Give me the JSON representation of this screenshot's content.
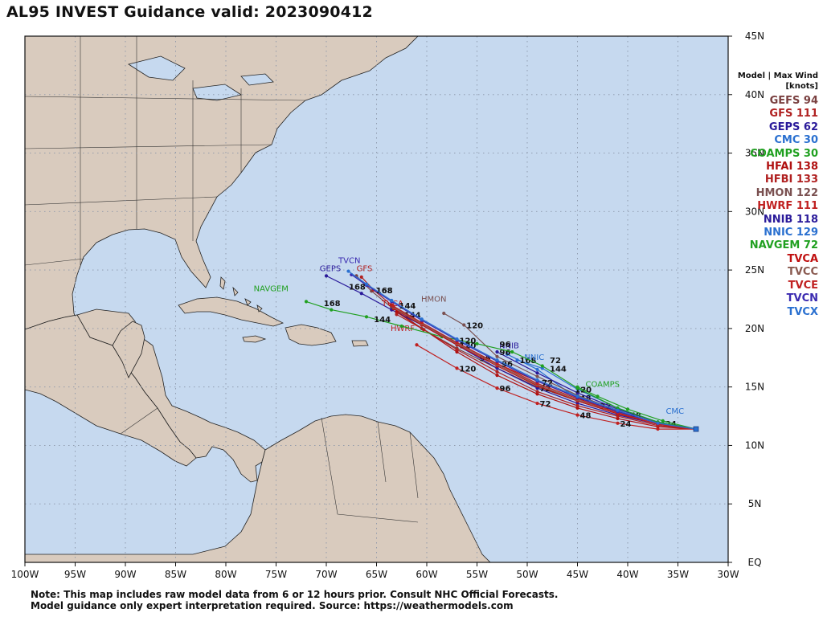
{
  "title": "AL95 INVEST Guidance valid: 2023090412",
  "legend": {
    "header_line1": "Model | Max Wind",
    "header_line2": "[knots]",
    "entries": [
      {
        "model": "GEFS",
        "wind": "94",
        "color": "#7a4040"
      },
      {
        "model": "GFS",
        "wind": "111",
        "color": "#b02020"
      },
      {
        "model": "GEPS",
        "wind": "62",
        "color": "#2a1a9a"
      },
      {
        "model": "CMC",
        "wind": "30",
        "color": "#2a70d0"
      },
      {
        "model": "COAMPS",
        "wind": "30",
        "color": "#20a020"
      },
      {
        "model": "HFAI",
        "wind": "138",
        "color": "#b01010"
      },
      {
        "model": "HFBI",
        "wind": "133",
        "color": "#b02020"
      },
      {
        "model": "HMON",
        "wind": "122",
        "color": "#7a5050"
      },
      {
        "model": "HWRF",
        "wind": "111",
        "color": "#c02020"
      },
      {
        "model": "NNIB",
        "wind": "118",
        "color": "#2a1a9a"
      },
      {
        "model": "NNIC",
        "wind": "129",
        "color": "#2a70d0"
      },
      {
        "model": "NAVGEM",
        "wind": "72",
        "color": "#20a020"
      },
      {
        "model": "TVCA",
        "wind": "",
        "color": "#c01010"
      },
      {
        "model": "TVCC",
        "wind": "",
        "color": "#8a5a50"
      },
      {
        "model": "TVCE",
        "wind": "",
        "color": "#c02020"
      },
      {
        "model": "TVCN",
        "wind": "",
        "color": "#3a2ab0"
      },
      {
        "model": "TVCX",
        "wind": "",
        "color": "#2a70d0"
      }
    ]
  },
  "note": {
    "line1": "Note: This map includes raw model data from 6 or 12 hours prior. Consult NHC Official Forecasts.",
    "line2": "Model guidance only expert interpretation required. Source: https://weathermodels.com"
  },
  "map": {
    "lon_range": [
      -100,
      -30
    ],
    "lat_range": [
      0,
      45
    ],
    "lon_ticks": [
      "100W",
      "95W",
      "90W",
      "85W",
      "80W",
      "75W",
      "70W",
      "65W",
      "60W",
      "55W",
      "50W",
      "45W",
      "40W",
      "35W",
      "30W"
    ],
    "lat_ticks": [
      "EQ",
      "5N",
      "10N",
      "15N",
      "20N",
      "25N",
      "30N",
      "35N",
      "40N",
      "45N"
    ],
    "ocean_color": "#c6d9ef",
    "land_color": "#d9cbbe"
  },
  "tracks": [
    {
      "model": "GEFS",
      "color": "#7a4040",
      "label": "",
      "points": [
        [
          -33.2,
          11.4
        ],
        [
          -37,
          11.8
        ],
        [
          -41,
          12.7
        ],
        [
          -45,
          13.8
        ],
        [
          -49,
          15.0
        ],
        [
          -53,
          16.6
        ],
        [
          -57,
          18.3
        ],
        [
          -60.5,
          20.0
        ],
        [
          -63.5,
          21.8
        ],
        [
          -65.5,
          23.2
        ],
        [
          -67,
          24.5
        ]
      ],
      "ticks": []
    },
    {
      "model": "GFS",
      "color": "#b02020",
      "label": "GFS",
      "label_pos": [
        -66.2,
        24.9
      ],
      "points": [
        [
          -33.2,
          11.4
        ],
        [
          -37,
          11.9
        ],
        [
          -41,
          12.9
        ],
        [
          -45,
          14.1
        ],
        [
          -49,
          15.5
        ],
        [
          -53,
          17.0
        ],
        [
          -57,
          18.8
        ],
        [
          -60.5,
          20.4
        ],
        [
          -63.5,
          22.0
        ],
        [
          -65.3,
          23.3
        ],
        [
          -66.5,
          24.4
        ]
      ],
      "ticks": [
        [
          -45,
          14.1,
          "48"
        ],
        [
          -55,
          17.5,
          "96"
        ],
        [
          -62.5,
          21.2,
          "144"
        ],
        [
          -65.3,
          23.3,
          "168"
        ]
      ]
    },
    {
      "model": "GEPS",
      "color": "#2a1a9a",
      "label": "GEPS",
      "label_pos": [
        -69.6,
        24.9
      ],
      "points": [
        [
          -33.2,
          11.4
        ],
        [
          -37,
          11.8
        ],
        [
          -41,
          12.6
        ],
        [
          -45,
          13.6
        ],
        [
          -49,
          14.9
        ],
        [
          -53,
          16.6
        ],
        [
          -57,
          18.6
        ],
        [
          -60.5,
          20.3
        ],
        [
          -63.5,
          21.6
        ],
        [
          -66.5,
          23.0
        ],
        [
          -70,
          24.5
        ]
      ],
      "ticks": [
        [
          -49,
          14.9,
          "72"
        ],
        [
          -57,
          18.6,
          "120"
        ],
        [
          -68,
          23.6,
          "168"
        ]
      ]
    },
    {
      "model": "CMC",
      "color": "#2a70d0",
      "label": "CMC",
      "label_pos": [
        -35.3,
        12.7
      ],
      "points": [
        [
          -33.2,
          11.4
        ],
        [
          -36.5,
          11.9
        ],
        [
          -40,
          12.6
        ],
        [
          -43,
          13.4
        ],
        [
          -46,
          14.6
        ],
        [
          -49,
          16.5
        ],
        [
          -52,
          17.8
        ]
      ],
      "ticks": [
        [
          -36.5,
          11.9,
          "24"
        ],
        [
          -40,
          12.6,
          "48"
        ],
        [
          -43,
          13.4,
          "72"
        ]
      ]
    },
    {
      "model": "COAMPS",
      "color": "#20a020",
      "label": "COAMPS",
      "label_pos": [
        -42.5,
        15.0
      ],
      "points": [
        [
          -33.2,
          11.4
        ],
        [
          -36.5,
          12.1
        ],
        [
          -40,
          13.1
        ],
        [
          -43,
          14.2
        ],
        [
          -45,
          15.0
        ]
      ],
      "ticks": []
    },
    {
      "model": "HFAI",
      "color": "#b01010",
      "label": "",
      "points": [
        [
          -33.2,
          11.4
        ],
        [
          -37,
          11.6
        ],
        [
          -41,
          12.3
        ],
        [
          -45,
          13.2
        ],
        [
          -49,
          14.4
        ],
        [
          -53,
          16.0
        ],
        [
          -57,
          18.0
        ],
        [
          -60.3,
          19.9
        ],
        [
          -63,
          21.4
        ]
      ],
      "ticks": []
    },
    {
      "model": "HFBI",
      "color": "#b02020",
      "label": "",
      "points": [
        [
          -33.2,
          11.4
        ],
        [
          -37,
          11.7
        ],
        [
          -41,
          12.5
        ],
        [
          -45,
          13.4
        ],
        [
          -49,
          14.6
        ],
        [
          -53,
          16.3
        ],
        [
          -57,
          18.2
        ],
        [
          -60.3,
          19.9
        ],
        [
          -63,
          21.2
        ]
      ],
      "ticks": []
    },
    {
      "model": "HMON",
      "color": "#7a5050",
      "label": "HMON",
      "label_pos": [
        -59.3,
        22.3
      ],
      "points": [
        [
          -33.2,
          11.4
        ],
        [
          -37,
          11.9
        ],
        [
          -41,
          13.0
        ],
        [
          -45,
          14.3
        ],
        [
          -49,
          15.9
        ],
        [
          -53,
          17.6
        ],
        [
          -56.3,
          20.3
        ],
        [
          -58.3,
          21.3
        ]
      ],
      "ticks": [
        [
          -56.3,
          20.3,
          "120"
        ]
      ]
    },
    {
      "model": "HWRF",
      "color": "#c02020",
      "label": "HWRF",
      "label_pos": [
        -62.4,
        19.8
      ],
      "points": [
        [
          -33.2,
          11.4
        ],
        [
          -37,
          11.4
        ],
        [
          -41,
          11.9
        ],
        [
          -45,
          12.6
        ],
        [
          -49,
          13.6
        ],
        [
          -53,
          14.9
        ],
        [
          -57,
          16.6
        ],
        [
          -61,
          18.6
        ]
      ],
      "ticks": [
        [
          -41,
          11.9,
          "24"
        ],
        [
          -45,
          12.6,
          "48"
        ],
        [
          -49,
          13.6,
          "72"
        ],
        [
          -53,
          14.9,
          "96"
        ],
        [
          -57,
          16.6,
          "120"
        ]
      ]
    },
    {
      "model": "NNIB",
      "color": "#2a1a9a",
      "label": "NNIB",
      "label_pos": [
        -51.8,
        18.3
      ],
      "points": [
        [
          -33.2,
          11.4
        ],
        [
          -37,
          12.0
        ],
        [
          -41,
          13.1
        ],
        [
          -45,
          14.5
        ],
        [
          -49,
          16.2
        ],
        [
          -53,
          18.0
        ]
      ],
      "ticks": [
        [
          -53,
          18.0,
          "96"
        ]
      ]
    },
    {
      "model": "NNIC",
      "color": "#2a70d0",
      "label": "NNIC",
      "label_pos": [
        -49.3,
        17.3
      ],
      "points": [
        [
          -33.2,
          11.4
        ],
        [
          -37,
          12.0
        ],
        [
          -41,
          13.2
        ],
        [
          -45,
          14.8
        ],
        [
          -48.5,
          16.6
        ],
        [
          -51,
          17.3
        ]
      ],
      "ticks": [
        [
          -51,
          17.3,
          "168"
        ],
        [
          -48,
          16.6,
          "144"
        ],
        [
          -45.5,
          14.8,
          "120"
        ]
      ]
    },
    {
      "model": "NAVGEM",
      "color": "#20a020",
      "label": "NAVGEM",
      "label_pos": [
        -75.5,
        23.2
      ],
      "points": [
        [
          -33.2,
          11.4
        ],
        [
          -37,
          12.0
        ],
        [
          -41,
          13.2
        ],
        [
          -45,
          14.9
        ],
        [
          -48.5,
          16.8
        ],
        [
          -51.5,
          18.0
        ],
        [
          -55,
          18.7
        ],
        [
          -58.5,
          19.3
        ],
        [
          -62.5,
          20.2
        ],
        [
          -66,
          21.0
        ],
        [
          -69.5,
          21.6
        ],
        [
          -72,
          22.3
        ]
      ],
      "ticks": [
        [
          -48,
          17.3,
          "72"
        ],
        [
          -53,
          18.7,
          "96"
        ],
        [
          -65.5,
          20.8,
          "144"
        ],
        [
          -70.5,
          22.2,
          "168"
        ]
      ]
    },
    {
      "model": "TVCA",
      "color": "#c01010",
      "label": "TVCA",
      "label_pos": [
        -63.4,
        21.9
      ],
      "points": [
        [
          -33.2,
          11.4
        ],
        [
          -37,
          11.8
        ],
        [
          -41,
          12.7
        ],
        [
          -45,
          13.8
        ],
        [
          -49,
          15.1
        ],
        [
          -53,
          16.8
        ],
        [
          -57,
          18.6
        ],
        [
          -60.5,
          20.3
        ],
        [
          -63.3,
          21.7
        ]
      ],
      "ticks": []
    },
    {
      "model": "TVCC",
      "color": "#8a5a50",
      "label": "",
      "points": [
        [
          -33.2,
          11.4
        ],
        [
          -37,
          11.8
        ],
        [
          -41,
          12.8
        ],
        [
          -45,
          13.9
        ],
        [
          -49,
          15.2
        ],
        [
          -53,
          16.9
        ],
        [
          -57,
          18.7
        ],
        [
          -60.5,
          20.4
        ],
        [
          -63.3,
          21.8
        ]
      ],
      "ticks": []
    },
    {
      "model": "TVCE",
      "color": "#c02020",
      "label": "",
      "points": [
        [
          -33.2,
          11.4
        ],
        [
          -37,
          11.8
        ],
        [
          -41,
          12.8
        ],
        [
          -45,
          14.0
        ],
        [
          -49,
          15.3
        ],
        [
          -53,
          17.0
        ],
        [
          -57,
          18.8
        ],
        [
          -60.5,
          20.5
        ],
        [
          -63.3,
          21.9
        ]
      ],
      "ticks": []
    },
    {
      "model": "TVCN",
      "color": "#3a2ab0",
      "label": "TVCN",
      "label_pos": [
        -67.7,
        25.6
      ],
      "points": [
        [
          -33.2,
          11.4
        ],
        [
          -37,
          11.9
        ],
        [
          -41,
          12.9
        ],
        [
          -45,
          14.1
        ],
        [
          -49,
          15.5
        ],
        [
          -53,
          17.2
        ],
        [
          -57,
          19.0
        ],
        [
          -60.5,
          20.7
        ],
        [
          -63.5,
          22.3
        ],
        [
          -66,
          23.7
        ],
        [
          -67.5,
          24.6
        ]
      ],
      "ticks": [
        [
          -48.8,
          15.4,
          "72"
        ],
        [
          -52.8,
          17.0,
          "96"
        ],
        [
          -57,
          19.0,
          "120"
        ],
        [
          -63,
          22.0,
          "144"
        ],
        [
          -65.3,
          23.3,
          "168"
        ]
      ]
    },
    {
      "model": "TVCX",
      "color": "#2a70d0",
      "label": "",
      "points": [
        [
          -33.2,
          11.4
        ],
        [
          -37,
          11.9
        ],
        [
          -41,
          13.0
        ],
        [
          -45,
          14.2
        ],
        [
          -49,
          15.6
        ],
        [
          -53,
          17.3
        ],
        [
          -57,
          19.1
        ],
        [
          -60.5,
          20.8
        ],
        [
          -63.5,
          22.4
        ],
        [
          -66,
          23.8
        ],
        [
          -67.8,
          24.9
        ]
      ],
      "ticks": []
    }
  ]
}
